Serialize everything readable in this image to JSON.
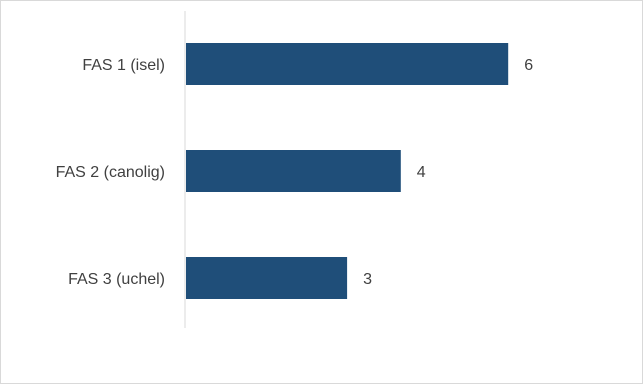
{
  "chart_data": {
    "type": "bar",
    "orientation": "horizontal",
    "categories": [
      "FAS 1 (isel)",
      "FAS 2 (canolig)",
      "FAS 3 (uchel)"
    ],
    "values": [
      6,
      4,
      3
    ],
    "data_labels": [
      "6",
      "4",
      "3"
    ],
    "title": "",
    "xlabel": "",
    "ylabel": "",
    "xlim": [
      0,
      8
    ],
    "grid": false,
    "legend": "none",
    "bar_color": "#1f4e79"
  }
}
